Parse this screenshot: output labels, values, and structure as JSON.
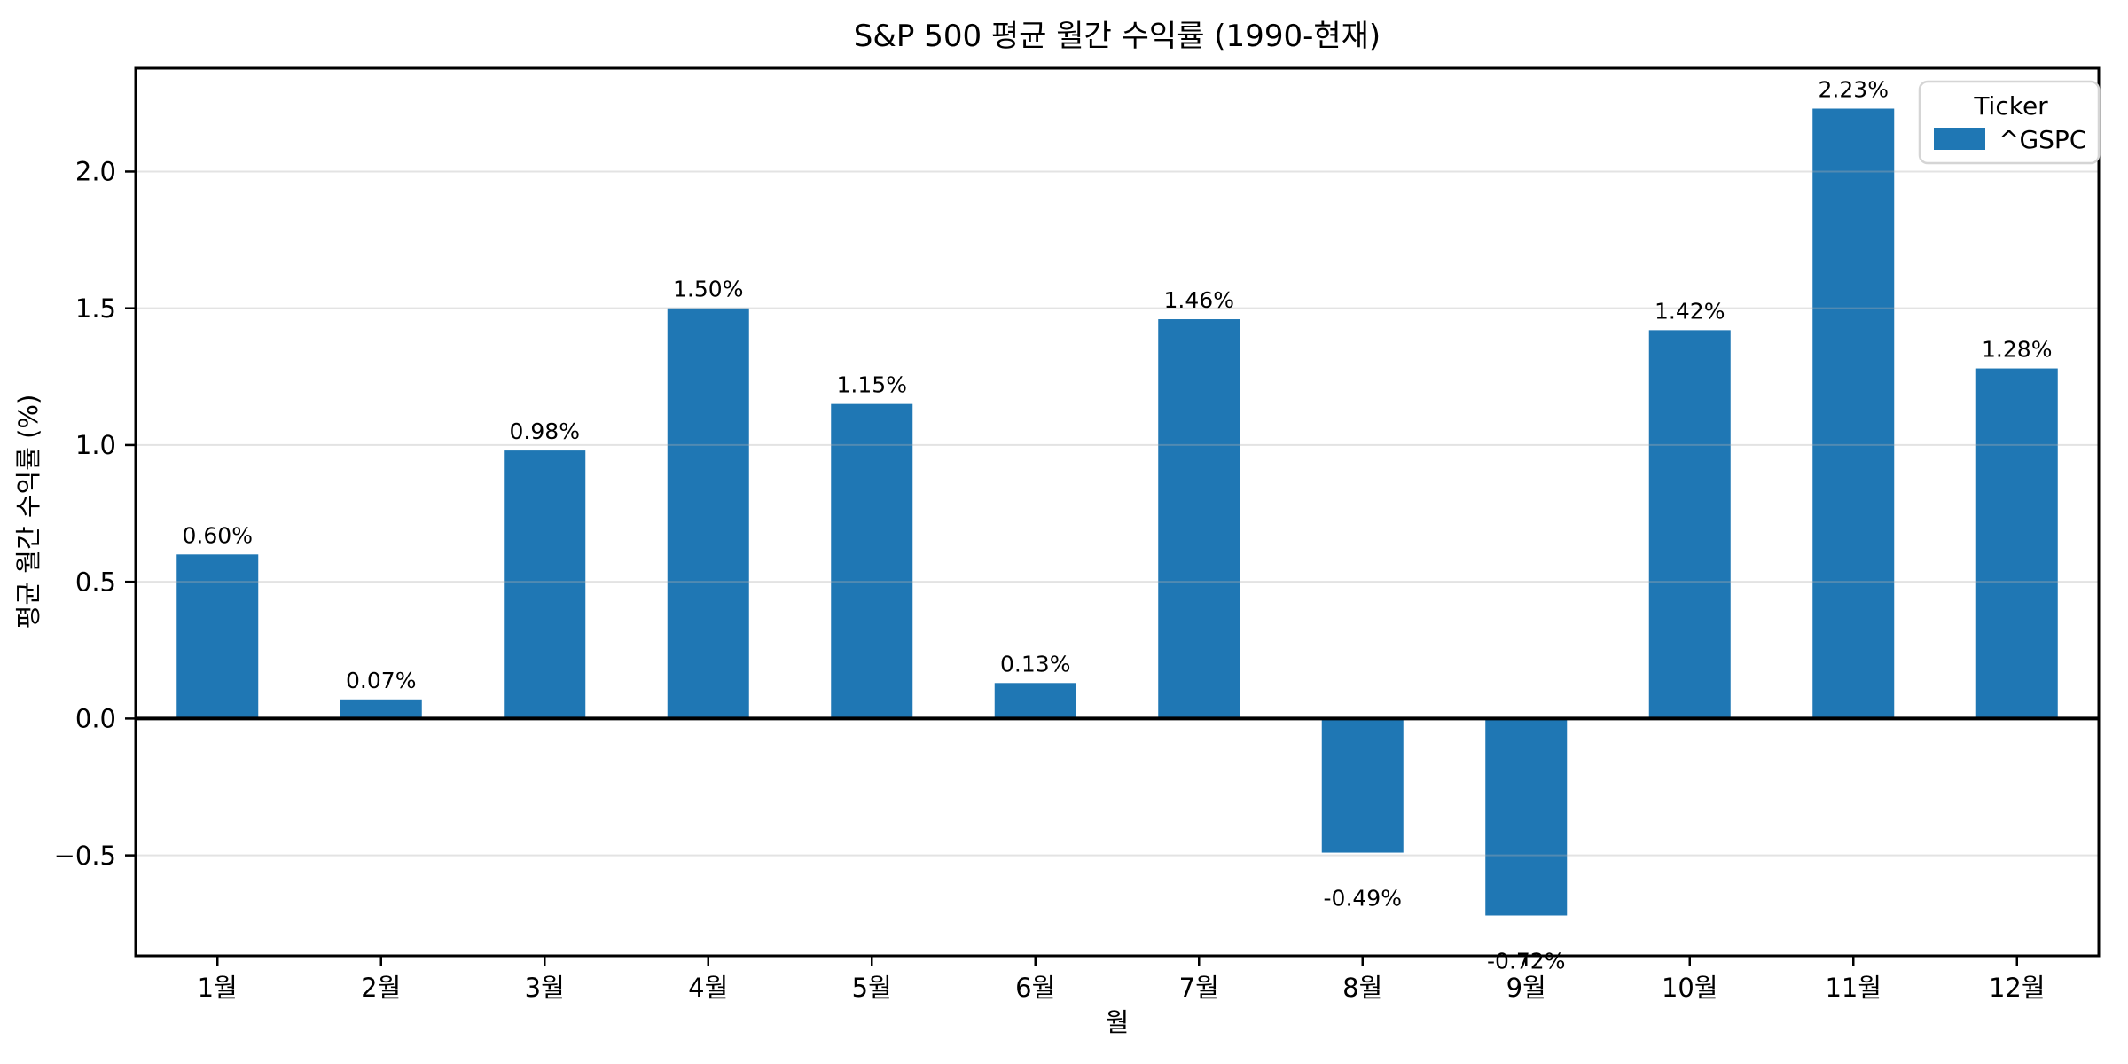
{
  "chart_data": {
    "type": "bar",
    "title": "S&P 500 평균 월간 수익률 (1990-현재)",
    "xlabel": "월",
    "ylabel": "평균 월간 수익률 (%)",
    "categories": [
      "1월",
      "2월",
      "3월",
      "4월",
      "5월",
      "6월",
      "7월",
      "8월",
      "9월",
      "10월",
      "11월",
      "12월"
    ],
    "series": [
      {
        "name": "^GSPC",
        "values": [
          0.6,
          0.07,
          0.98,
          1.5,
          1.15,
          0.13,
          1.46,
          -0.49,
          -0.72,
          1.42,
          2.23,
          1.28
        ]
      }
    ],
    "values": [
      0.6,
      0.07,
      0.98,
      1.5,
      1.15,
      0.13,
      1.46,
      -0.49,
      -0.72,
      1.42,
      2.23,
      1.28
    ],
    "bar_labels": [
      "0.60%",
      "0.07%",
      "0.98%",
      "1.50%",
      "1.15%",
      "0.13%",
      "1.46%",
      "-0.49%",
      "-0.72%",
      "1.42%",
      "2.23%",
      "1.28%"
    ],
    "yticks": [
      2.0,
      1.5,
      1.0,
      0.5,
      0.0,
      -0.5
    ],
    "ytick_labels": [
      "2.0",
      "1.5",
      "1.0",
      "0.5",
      "0.0",
      "−0.5"
    ],
    "ylim": [
      -0.8675,
      2.3775
    ],
    "grid": true,
    "zero_line": true,
    "legend_position": "upper right",
    "legend": {
      "title": "Ticker",
      "entries": [
        {
          "label": "^GSPC",
          "color": "#1f77b4"
        }
      ]
    },
    "style": {
      "bar_color": "#1f77b4",
      "grid_color": "rgba(176,176,176,0.35)",
      "axis_color": "#000000",
      "background": "#ffffff",
      "legend_border": "#d5d5d5"
    }
  }
}
